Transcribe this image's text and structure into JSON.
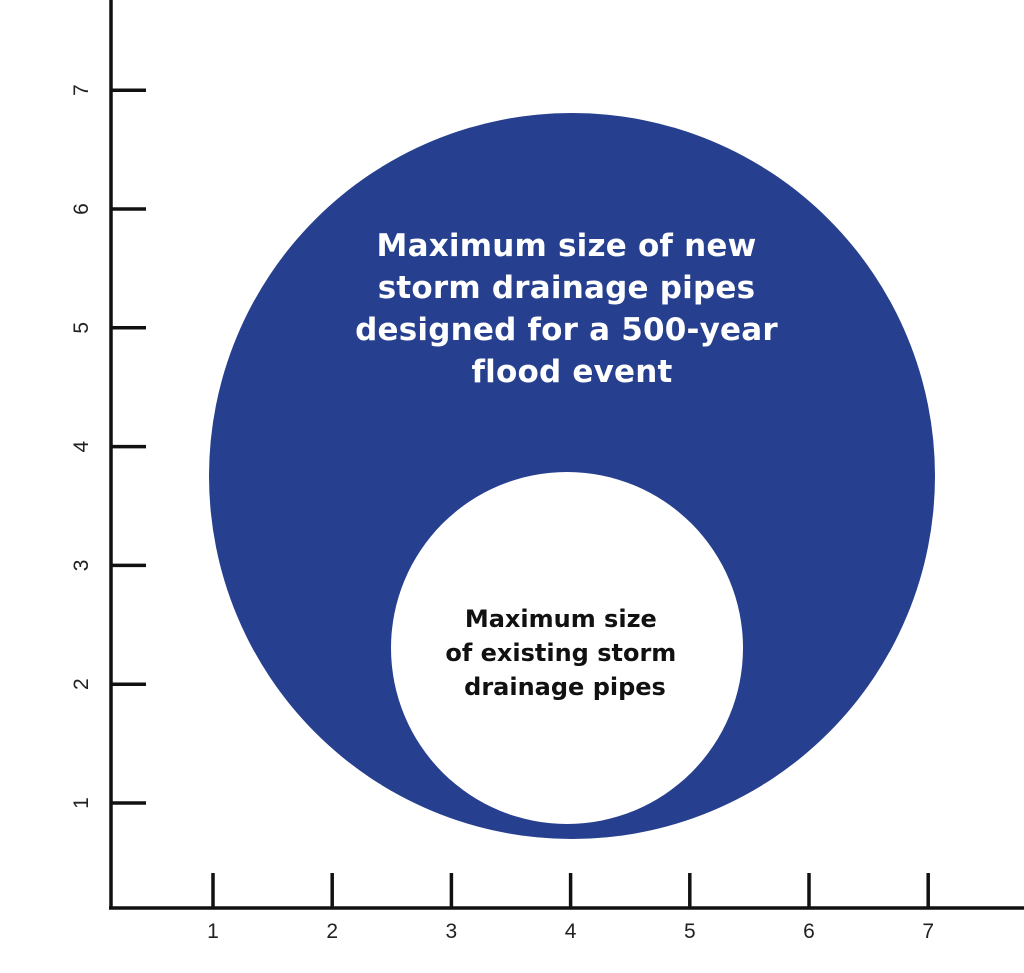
{
  "axes": {
    "x_ticks": [
      "1",
      "2",
      "3",
      "4",
      "5",
      "6",
      "7"
    ],
    "y_ticks": [
      "1",
      "2",
      "3",
      "4",
      "5",
      "6",
      "7"
    ]
  },
  "colors": {
    "large_circle": "#263f8e",
    "small_circle": "#ffffff",
    "axis": "#111111"
  },
  "large_circle": {
    "lines": [
      "Maximum size of new",
      "storm drainage pipes",
      "designed for a 500-year",
      "flood event"
    ]
  },
  "small_circle": {
    "lines": [
      "Maximum size",
      "of existing storm",
      "drainage pipes"
    ]
  }
}
